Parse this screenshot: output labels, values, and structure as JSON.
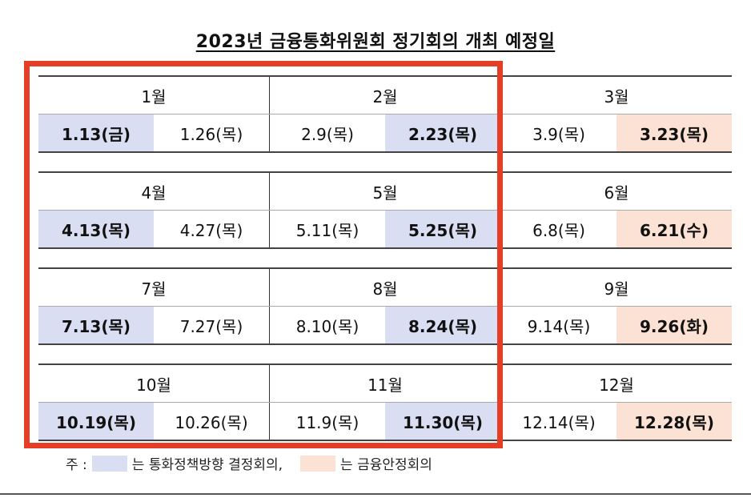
{
  "title": "2023년 금융통화위원회 정기회의 개최 예정일",
  "colors": {
    "blue": "#d9def2",
    "peach": "#fbe2d5",
    "frame": "#e53d26"
  },
  "quarters": [
    {
      "months": [
        "1월",
        "2월",
        "3월"
      ],
      "dates": [
        [
          {
            "text": "1.13(금)",
            "style": "blue"
          },
          {
            "text": "1.26(목)",
            "style": ""
          }
        ],
        [
          {
            "text": "2.9(목)",
            "style": ""
          },
          {
            "text": "2.23(목)",
            "style": "blue"
          }
        ],
        [
          {
            "text": "3.9(목)",
            "style": ""
          },
          {
            "text": "3.23(목)",
            "style": "peach"
          }
        ]
      ]
    },
    {
      "months": [
        "4월",
        "5월",
        "6월"
      ],
      "dates": [
        [
          {
            "text": "4.13(목)",
            "style": "blue"
          },
          {
            "text": "4.27(목)",
            "style": ""
          }
        ],
        [
          {
            "text": "5.11(목)",
            "style": ""
          },
          {
            "text": "5.25(목)",
            "style": "blue"
          }
        ],
        [
          {
            "text": "6.8(목)",
            "style": ""
          },
          {
            "text": "6.21(수)",
            "style": "peach"
          }
        ]
      ]
    },
    {
      "months": [
        "7월",
        "8월",
        "9월"
      ],
      "dates": [
        [
          {
            "text": "7.13(목)",
            "style": "blue"
          },
          {
            "text": "7.27(목)",
            "style": ""
          }
        ],
        [
          {
            "text": "8.10(목)",
            "style": ""
          },
          {
            "text": "8.24(목)",
            "style": "blue"
          }
        ],
        [
          {
            "text": "9.14(목)",
            "style": ""
          },
          {
            "text": "9.26(화)",
            "style": "peach"
          }
        ]
      ]
    },
    {
      "months": [
        "10월",
        "11월",
        "12월"
      ],
      "dates": [
        [
          {
            "text": "10.19(목)",
            "style": "blue"
          },
          {
            "text": "10.26(목)",
            "style": ""
          }
        ],
        [
          {
            "text": "11.9(목)",
            "style": ""
          },
          {
            "text": "11.30(목)",
            "style": "blue"
          }
        ],
        [
          {
            "text": "12.14(목)",
            "style": ""
          },
          {
            "text": "12.28(목)",
            "style": "peach"
          }
        ]
      ]
    }
  ],
  "legend": {
    "prefix": "주 :",
    "blue_text": "는 통화정책방향 결정회의,",
    "peach_text": "는 금융안정회의"
  }
}
